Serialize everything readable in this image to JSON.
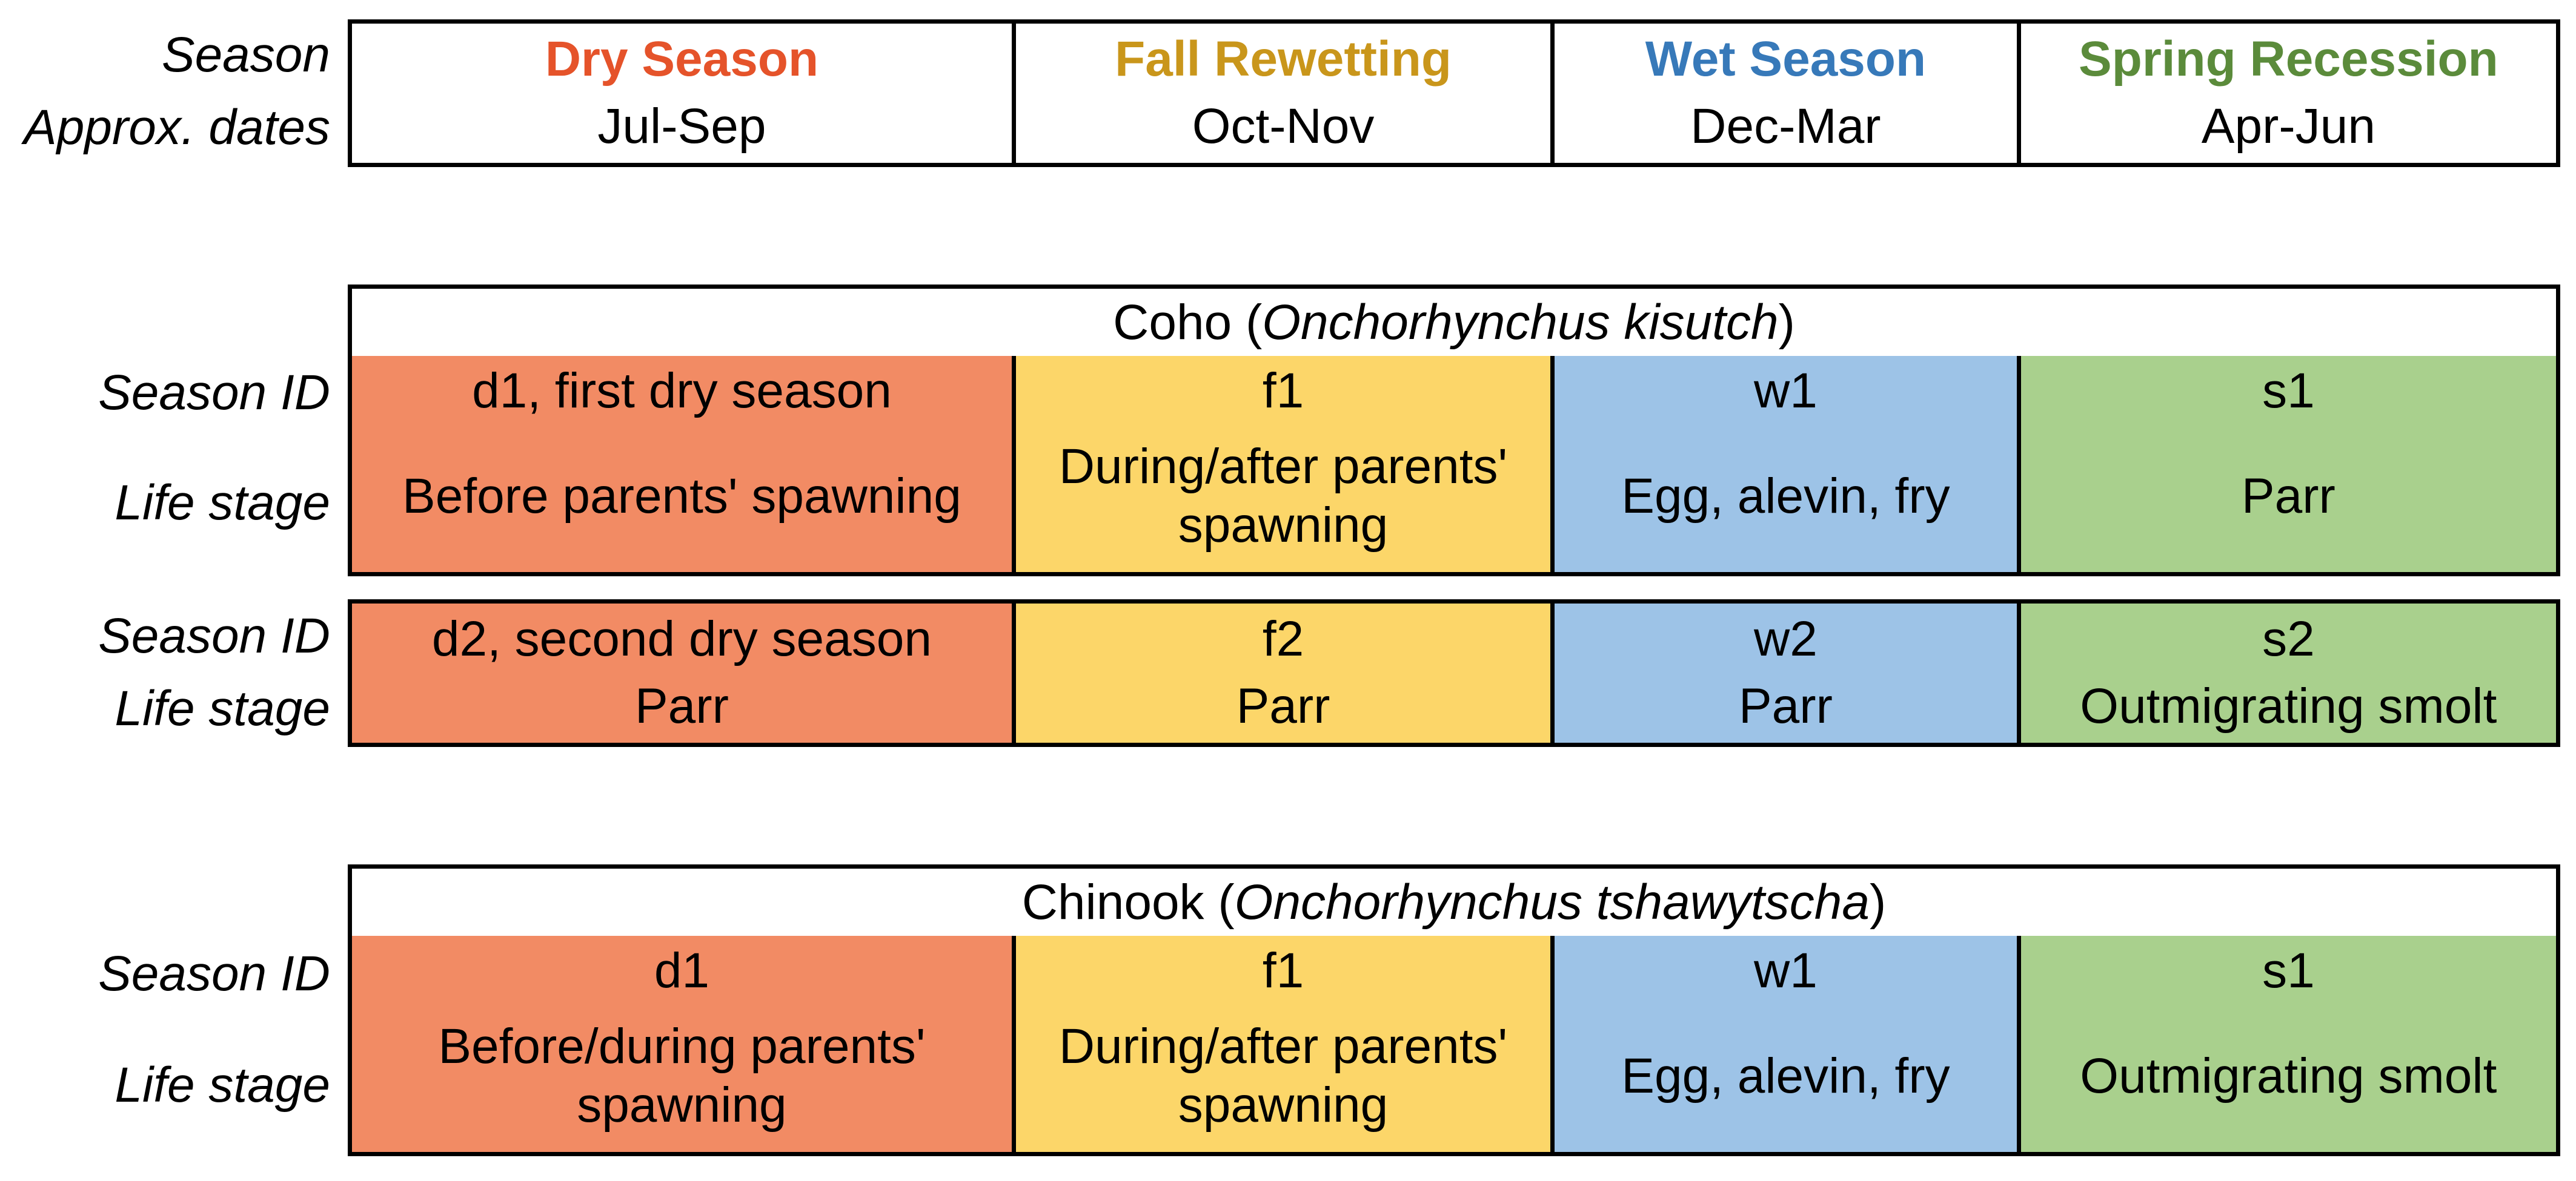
{
  "header": {
    "labels": {
      "season": "Season",
      "dates": "Approx. dates"
    },
    "seasons": [
      {
        "name": "Dry Season",
        "dates": "Jul-Sep",
        "color": "#e5532a"
      },
      {
        "name": "Fall Rewetting",
        "dates": "Oct-Nov",
        "color": "#c9961b"
      },
      {
        "name": "Wet Season",
        "dates": "Dec-Mar",
        "color": "#3779b9"
      },
      {
        "name": "Spring Recession",
        "dates": "Apr-Jun",
        "color": "#5b8b3b"
      }
    ]
  },
  "row_labels": {
    "season_id": "Season ID",
    "life_stage": "Life stage"
  },
  "coho": {
    "common": "Coho (",
    "scientific": "Onchorhynchus kisutch",
    "close": " )",
    "year1": [
      {
        "id": "d1, first dry season",
        "stage": "Before parents' spawning"
      },
      {
        "id": "f1",
        "stage": "During/after parents' spawning"
      },
      {
        "id": "w1",
        "stage": "Egg, alevin, fry"
      },
      {
        "id": "s1",
        "stage": "Parr"
      }
    ],
    "year2": [
      {
        "id": "d2, second dry season",
        "stage": "Parr"
      },
      {
        "id": "f2",
        "stage": "Parr"
      },
      {
        "id": "w2",
        "stage": "Parr"
      },
      {
        "id": "s2",
        "stage": "Outmigrating smolt"
      }
    ]
  },
  "chinook": {
    "common": "Chinook (",
    "scientific": "Onchorhynchus tshawytscha",
    "close": " )",
    "year1": [
      {
        "id": "d1",
        "stage": "Before/during parents' spawning"
      },
      {
        "id": "f1",
        "stage": "During/after parents' spawning"
      },
      {
        "id": "w1",
        "stage": "Egg, alevin, fry"
      },
      {
        "id": "s1",
        "stage": "Outmigrating smolt"
      }
    ]
  },
  "colors": {
    "dry": "#f28b64",
    "fall": "#fcd669",
    "wet": "#9dc3e7",
    "spring": "#a9d08d",
    "border": "#000000"
  }
}
